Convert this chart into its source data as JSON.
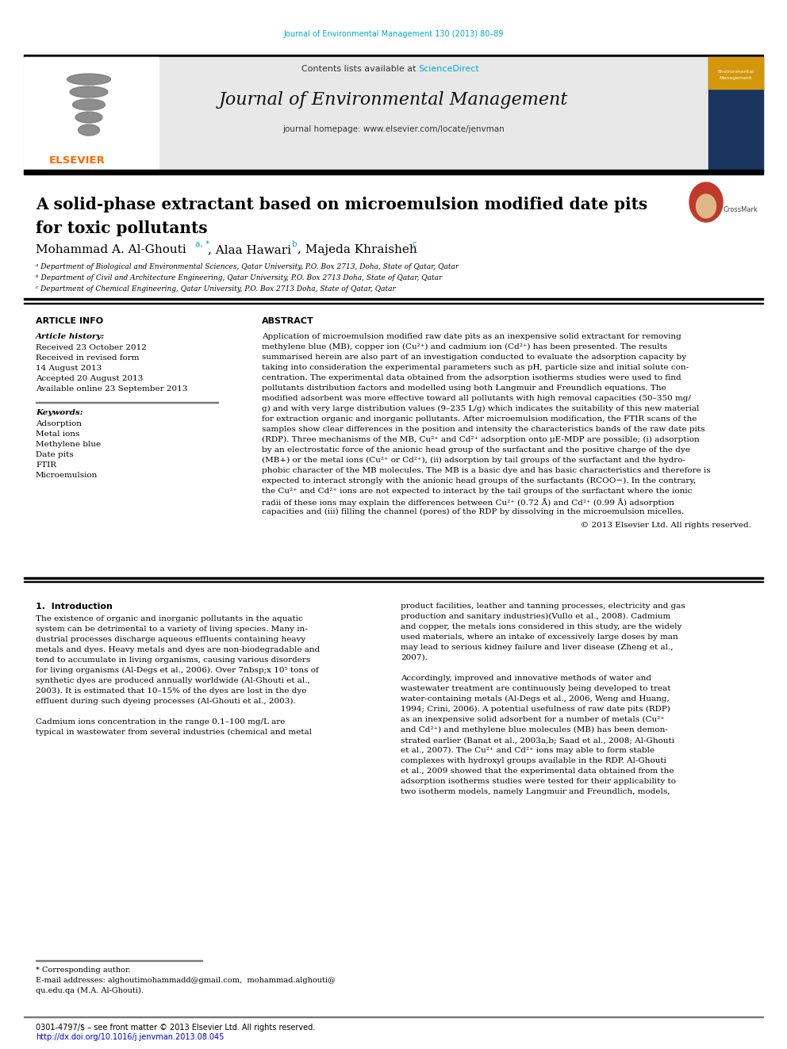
{
  "page_bg": "#ffffff",
  "top_citation": "Journal of Environmental Management 130 (2013) 80–89",
  "top_citation_color": "#00aacc",
  "header_bg": "#e8e8e8",
  "header_text1": "Contents lists available at ",
  "header_sciencedirect": "ScienceDirect",
  "sciencedirect_color": "#00aacc",
  "journal_name": "Journal of Environmental Management",
  "journal_homepage": "journal homepage: www.elsevier.com/locate/jenvman",
  "article_title_line1": "A solid-phase extractant based on microemulsion modified date pits",
  "article_title_line2": "for toxic pollutants",
  "affil_a": "ᵃ Department of Biological and Environmental Sciences, Qatar University, P.O. Box 2713, Doha, State of Qatar, Qatar",
  "affil_b": "ᵇ Department of Civil and Architecture Engineering, Qatar University, P.O. Box 2713 Doha, State of Qatar, Qatar",
  "affil_c": "ᶜ Department of Chemical Engineering, Qatar University, P.O. Box 2713 Doha, State of Qatar, Qatar",
  "article_info_title": "ARTICLE INFO",
  "abstract_title": "ABSTRACT",
  "article_history_title": "Article history:",
  "article_history": [
    "Received 23 October 2012",
    "Received in revised form",
    "14 August 2013",
    "Accepted 20 August 2013",
    "Available online 23 September 2013"
  ],
  "keywords_title": "Keywords:",
  "keywords": [
    "Adsorption",
    "Metal ions",
    "Methylene blue",
    "Date pits",
    "FTIR",
    "Microemulsion"
  ],
  "abstract_lines": [
    "Application of microemulsion modified raw date pits as an inexpensive solid extractant for removing",
    "methylene blue (MB), copper ion (Cu²⁺) and cadmium ion (Cd²⁺) has been presented. The results",
    "summarised herein are also part of an investigation conducted to evaluate the adsorption capacity by",
    "taking into consideration the experimental parameters such as pH, particle size and initial solute con-",
    "centration. The experimental data obtained from the adsorption isotherms studies were used to find",
    "pollutants distribution factors and modelled using both Langmuir and Freundlich equations. The",
    "modified adsorbent was more effective toward all pollutants with high removal capacities (50–350 mg/",
    "g) and with very large distribution values (9–235 L/g) which indicates the suitability of this new material",
    "for extraction organic and inorganic pollutants. After microemulsion modification, the FTIR scans of the",
    "samples show clear differences in the position and intensity the characteristics bands of the raw date pits",
    "(RDP). Three mechanisms of the MB, Cu²⁺ and Cd²⁺ adsorption onto μE-MDP are possible; (i) adsorption",
    "by an electrostatic force of the anionic head group of the surfactant and the positive charge of the dye",
    "(MB+) or the metal ions (Cu²⁺ or Cd²⁺), (ii) adsorption by tail groups of the surfactant and the hydro-",
    "phobic character of the MB molecules. The MB is a basic dye and has basic characteristics and therefore is",
    "expected to interact strongly with the anionic head groups of the surfactants (RCOO−). In the contrary,",
    "the Cu²⁺ and Cd²⁺ ions are not expected to interact by the tail groups of the surfactant where the ionic",
    "radii of these ions may explain the differences between Cu²⁺ (0.72 Å) and Cd²⁺ (0.99 Å) adsorption",
    "capacities and (iii) filling the channel (pores) of the RDP by dissolving in the microemulsion micelles."
  ],
  "copyright": "© 2013 Elsevier Ltd. All rights reserved.",
  "intro_title": "1.  Introduction",
  "intro_col1_lines": [
    "The existence of organic and inorganic pollutants in the aquatic",
    "system can be detrimental to a variety of living species. Many in-",
    "dustrial processes discharge aqueous effluents containing heavy",
    "metals and dyes. Heavy metals and dyes are non-biodegradable and",
    "tend to accumulate in living organisms, causing various disorders",
    "for living organisms (Al-Degs et al., 2006). Over 7nbsp;x 10⁵ tons of",
    "synthetic dyes are produced annually worldwide (Al-Ghouti et al.,",
    "2003). It is estimated that 10–15% of the dyes are lost in the dye",
    "effluent during such dyeing processes (Al-Ghouti et al., 2003).",
    "",
    "Cadmium ions concentration in the range 0.1–100 mg/L are",
    "typical in wastewater from several industries (chemical and metal"
  ],
  "intro_col2_lines": [
    "product facilities, leather and tanning processes, electricity and gas",
    "production and sanitary industries)(Vullo et al., 2008). Cadmium",
    "and copper, the metals ions considered in this study, are the widely",
    "used materials, where an intake of excessively large doses by man",
    "may lead to serious kidney failure and liver disease (Zheng et al.,",
    "2007).",
    "",
    "Accordingly, improved and innovative methods of water and",
    "wastewater treatment are continuously being developed to treat",
    "water-containing metals (Al-Degs et al., 2006, Weng and Huang,",
    "1994; Crini, 2006). A potential usefulness of raw date pits (RDP)",
    "as an inexpensive solid adsorbent for a number of metals (Cu²⁺",
    "and Cd²⁺) and methylene blue molecules (MB) has been demon-",
    "strated earlier (Banat et al., 2003a,b; Saad et al., 2008; Al-Ghouti",
    "et al., 2007). The Cu²⁺ and Cd²⁺ ions may able to form stable",
    "complexes with hydroxyl groups available in the RDP. Al-Ghouti",
    "et al., 2009 showed that the experimental data obtained from the",
    "adsorption isotherms studies were tested for their applicability to",
    "two isotherm models, namely Langmuir and Freundlich, models,"
  ],
  "footnote_star": "* Corresponding author.",
  "footnote_email1": "E-mail addresses: alghoutimohammadd@gmail.com,  mohammad.alghouti@",
  "footnote_email2": "qu.edu.qa (M.A. Al-Ghouti).",
  "footer_line1": "0301-4797/$ – see front matter © 2013 Elsevier Ltd. All rights reserved.",
  "footer_line2": "http://dx.doi.org/10.1016/j.jenvman.2013.08.045",
  "elsevier_color": "#ff6600"
}
